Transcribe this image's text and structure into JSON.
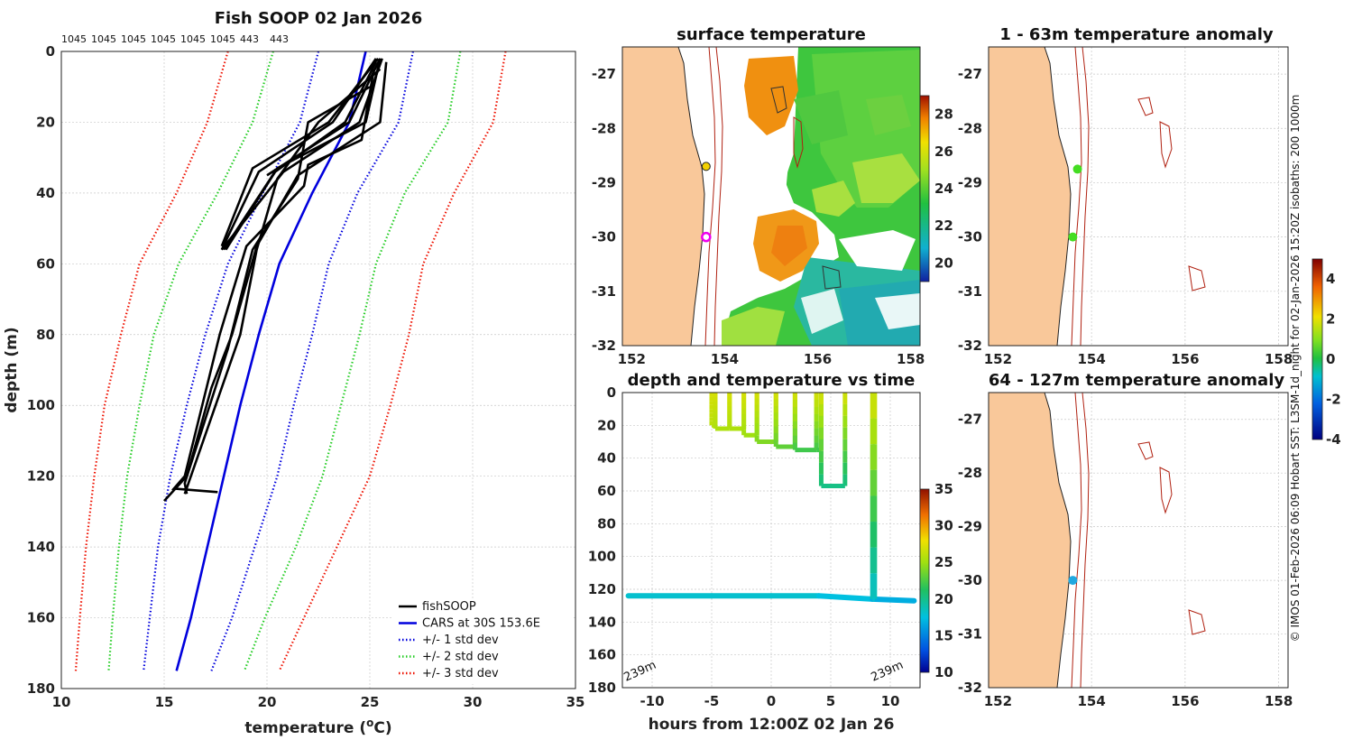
{
  "chart_data": [
    {
      "id": "profile",
      "type": "line",
      "title": "Fish SOOP 02 Jan 2026",
      "xlabel": "temperature (",
      "xlabel_sup": "o",
      "xlabel_tail": "C)",
      "ylabel": "depth (m)",
      "xlim": [
        10,
        35
      ],
      "ylim": [
        0,
        180
      ],
      "xticks": [
        10,
        15,
        20,
        25,
        30,
        35
      ],
      "yticks": [
        0,
        20,
        40,
        60,
        80,
        100,
        120,
        140,
        160,
        180
      ],
      "count_labels": [
        "1045",
        "1045",
        "1045",
        "1045",
        "1045",
        "1045",
        "443",
        "443"
      ],
      "legend": [
        {
          "label": "fishSOOP",
          "color": "#000000",
          "style": "solid"
        },
        {
          "label": "CARS at 30S 153.6E",
          "color": "#0000dd",
          "style": "solid"
        },
        {
          "label": "+/- 1 std dev",
          "color": "#0000dd",
          "style": "dotted"
        },
        {
          "label": "+/- 2 std dev",
          "color": "#22cc22",
          "style": "dotted"
        },
        {
          "label": "+/- 3 std dev",
          "color": "#ee1100",
          "style": "dotted"
        }
      ],
      "cars_mean": {
        "depth": [
          0,
          20,
          40,
          60,
          80,
          100,
          120,
          140,
          160,
          175
        ],
        "temp": [
          24.8,
          24.0,
          22.2,
          20.6,
          19.6,
          18.7,
          17.9,
          17.1,
          16.3,
          15.6
        ]
      },
      "std_bands": [
        {
          "k": 1,
          "color": "#0000dd",
          "left": [
            22.5,
            21.6,
            19.8,
            18.1,
            17.0,
            16.1,
            15.3,
            14.7,
            14.3,
            14.0
          ],
          "right": [
            27.1,
            26.4,
            24.4,
            23.0,
            22.2,
            21.3,
            20.5,
            19.4,
            18.3,
            17.3
          ]
        },
        {
          "k": 2,
          "color": "#22cc22",
          "left": [
            20.3,
            19.3,
            17.6,
            15.7,
            14.5,
            13.8,
            13.2,
            12.8,
            12.5,
            12.3
          ],
          "right": [
            29.4,
            28.8,
            26.7,
            25.3,
            24.5,
            23.6,
            22.7,
            21.4,
            19.9,
            18.9
          ]
        },
        {
          "k": 3,
          "color": "#ee1100",
          "left": [
            18.1,
            17.1,
            15.6,
            13.8,
            12.9,
            12.1,
            11.6,
            11.2,
            10.9,
            10.7
          ],
          "right": [
            31.6,
            31.0,
            29.1,
            27.6,
            26.9,
            26.0,
            25.0,
            23.4,
            21.8,
            20.6
          ]
        }
      ],
      "fishsoop_casts": [
        {
          "depth": [
            2,
            20,
            33,
            55
          ],
          "temp": [
            25.4,
            23.0,
            19.3,
            17.8
          ]
        },
        {
          "depth": [
            2,
            20,
            33,
            56
          ],
          "temp": [
            25.5,
            24.8,
            20.5,
            17.9
          ]
        },
        {
          "depth": [
            2,
            20,
            34,
            56
          ],
          "temp": [
            25.3,
            23.2,
            19.6,
            17.8
          ]
        },
        {
          "depth": [
            2,
            20,
            34,
            56
          ],
          "temp": [
            25.6,
            24.5,
            20.8,
            17.8
          ]
        },
        {
          "depth": [
            2,
            20,
            35
          ],
          "temp": [
            25.5,
            24.0,
            20.0
          ]
        },
        {
          "depth": [
            3,
            20,
            34,
            56
          ],
          "temp": [
            25.3,
            23.8,
            20.4,
            18.0
          ]
        },
        {
          "depth": [
            5,
            20,
            36,
            56,
            80,
            120,
            125
          ],
          "temp": [
            25.5,
            22.5,
            20.5,
            19.5,
            18.7,
            16.3,
            16.0
          ]
        },
        {
          "depth": [
            10,
            20,
            36,
            56,
            84,
            122,
            125
          ],
          "temp": [
            25.0,
            22.0,
            21.5,
            19.3,
            18.1,
            16.0,
            16.1
          ]
        },
        {
          "depth": [
            3,
            20,
            35,
            55,
            80,
            95,
            120,
            127
          ],
          "temp": [
            25.8,
            25.5,
            21.5,
            19.5,
            18.3,
            17.3,
            16.1,
            15.0
          ]
        },
        {
          "depth": [
            5,
            25,
            32,
            38,
            55,
            80,
            120,
            124
          ],
          "temp": [
            25.2,
            24.6,
            22.0,
            21.8,
            19.0,
            17.7,
            16.0,
            15.4
          ]
        },
        {
          "depth": [
            123.5,
            124.0,
            124.5
          ],
          "temp": [
            15.5,
            16.5,
            17.6
          ]
        }
      ]
    },
    {
      "id": "surface-sst",
      "type": "heatmap",
      "title": "surface temperature",
      "xlim": [
        151.8,
        158.2
      ],
      "ylim": [
        -32,
        -26.5
      ],
      "xticks": [
        152,
        154,
        156,
        158
      ],
      "yticks": [
        -27,
        -28,
        -29,
        -30,
        -31,
        -32
      ],
      "colorbar": {
        "min": 19,
        "max": 29,
        "ticks": [
          20,
          22,
          24,
          26,
          28
        ]
      },
      "markers": [
        {
          "lon": 153.6,
          "lat": -28.7,
          "color": "#f2d100"
        },
        {
          "lon": 153.6,
          "lat": -30.0,
          "color": "#ee00ee"
        }
      ]
    },
    {
      "id": "anomaly-1-63",
      "type": "scatter",
      "title": "1 - 63m temperature anomaly",
      "xticks": [
        152,
        154,
        156,
        158
      ],
      "yticks": [
        -27,
        -28,
        -29,
        -30,
        -31,
        -32
      ],
      "points": [
        {
          "lon": 153.7,
          "lat": -28.75,
          "anomaly": 0.3
        },
        {
          "lon": 153.6,
          "lat": -30.0,
          "anomaly": 0.3
        }
      ]
    },
    {
      "id": "depth-time",
      "type": "scatter",
      "title": "depth and temperature vs time",
      "xlabel": "hours from 12:00Z 02 Jan 26",
      "xlim": [
        -12.5,
        12.5
      ],
      "ylim": [
        0,
        180
      ],
      "xticks": [
        -10,
        -5,
        0,
        5,
        10
      ],
      "yticks": [
        0,
        20,
        40,
        60,
        80,
        100,
        120,
        140,
        160,
        180
      ],
      "colorbar": {
        "min": 10,
        "max": 35,
        "ticks": [
          10,
          15,
          20,
          25,
          30,
          35
        ]
      },
      "depth_labels": [
        "239m",
        "239m"
      ],
      "trace": [
        {
          "time": -12,
          "depth": 124,
          "temp": 18
        },
        {
          "time": -5,
          "depth": 124,
          "temp": 18
        },
        {
          "time": 0,
          "depth": 124,
          "temp": 18
        },
        {
          "time": 4,
          "depth": 124,
          "temp": 18
        },
        {
          "time": 8.5,
          "depth": 126,
          "temp": 17
        },
        {
          "time": 12,
          "depth": 127,
          "temp": 16.5
        }
      ],
      "dives": [
        {
          "t0": -5,
          "t1": -4.7,
          "max_depth": 20,
          "temp": 26
        },
        {
          "t0": -4.7,
          "t1": -3.5,
          "max_depth": 22,
          "temp": 25.5
        },
        {
          "t0": -3.5,
          "t1": -2.3,
          "max_depth": 22,
          "temp": 25.5
        },
        {
          "t0": -2.3,
          "t1": -1.2,
          "max_depth": 26,
          "temp": 25
        },
        {
          "t0": -1.2,
          "t1": 0.4,
          "max_depth": 30,
          "temp": 24
        },
        {
          "t0": 0.4,
          "t1": 2.0,
          "max_depth": 33,
          "temp": 23
        },
        {
          "t0": 2.0,
          "t1": 3.8,
          "max_depth": 35,
          "temp": 22
        },
        {
          "t0": 3.8,
          "t1": 4.2,
          "max_depth": 35,
          "temp": 22
        },
        {
          "t0": 4.2,
          "t1": 6.2,
          "max_depth": 57,
          "temp": 20
        },
        {
          "t0": 8.5,
          "t1": 8.7,
          "max_depth": 126,
          "temp": 18
        }
      ]
    },
    {
      "id": "anomaly-64-127",
      "type": "scatter",
      "title": "64 - 127m temperature anomaly",
      "xticks": [
        152,
        154,
        156,
        158
      ],
      "yticks": [
        -27,
        -28,
        -29,
        -30,
        -31,
        -32
      ],
      "colorbar": {
        "min": -4,
        "max": 5,
        "ticks": [
          -4,
          -2,
          0,
          2,
          4
        ]
      },
      "points": [
        {
          "lon": 153.6,
          "lat": -30.0,
          "anomaly": -1.5
        }
      ]
    }
  ],
  "credit": "© IMOS 01-Feb-2026 06:09 Hobart SST: L3SM-1d_night for 02-Jan-2026 15:20Z isobaths: 200 1000m"
}
